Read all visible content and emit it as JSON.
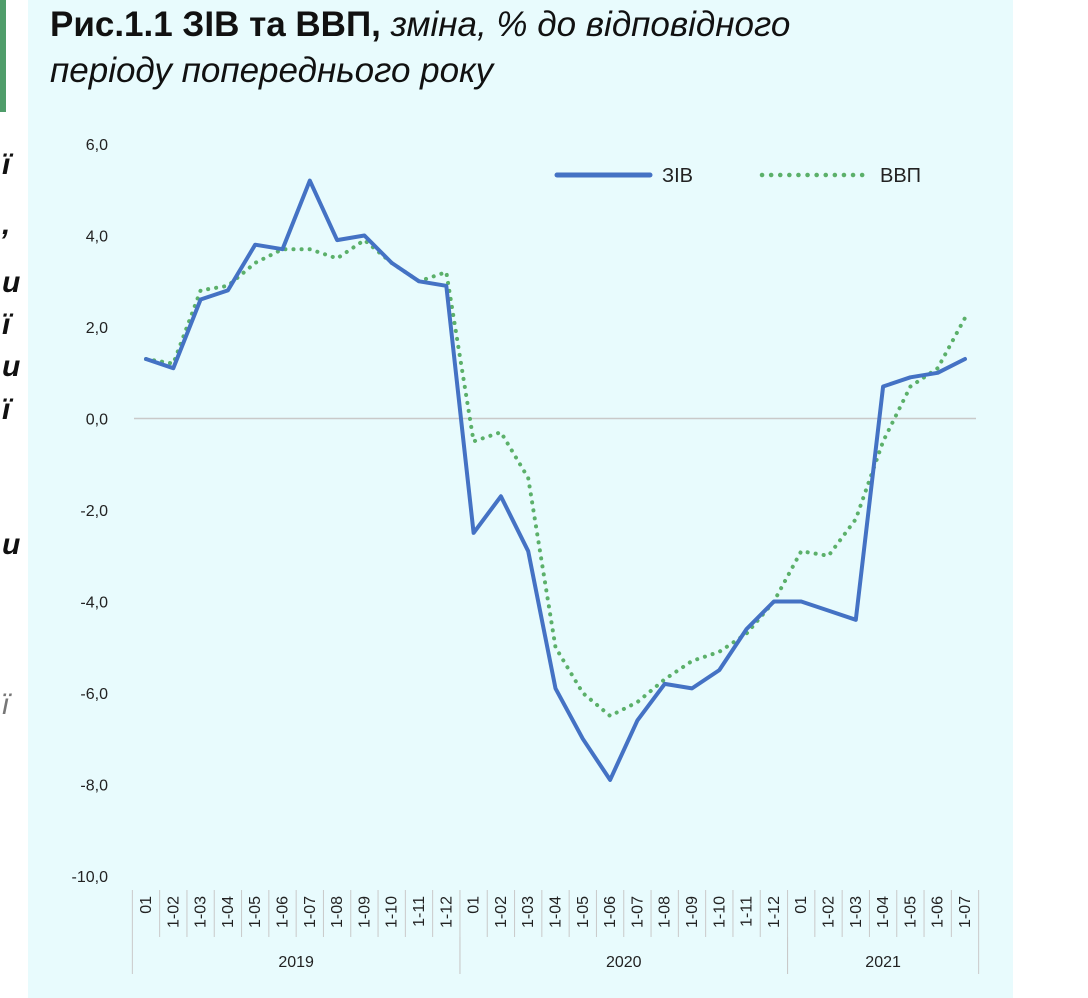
{
  "title": {
    "bold": "Рис.1.1 ЗІВ та ВВП,",
    "italic_line1": " зміна, % до відповідного",
    "italic_line2": "періоду попереднього року"
  },
  "left_fragments": [
    "ї",
    ",",
    "и",
    "ї",
    "и",
    "ї",
    "и",
    "ї"
  ],
  "chart_data": {
    "type": "line",
    "title": "Рис.1.1 ЗІВ та ВВП, зміна, % до відповідного періоду попереднього року",
    "xlabel": "",
    "ylabel": "",
    "ylim": [
      -10,
      6
    ],
    "yticks": [
      6,
      4,
      2,
      0,
      -2,
      -4,
      -6,
      -8,
      -10
    ],
    "ytick_labels": [
      "6,0",
      "4,0",
      "2,0",
      "0,0",
      "-2,0",
      "-4,0",
      "-6,0",
      "-8,0",
      "-10,0"
    ],
    "categories": [
      "01",
      "1-02",
      "1-03",
      "1-04",
      "1-05",
      "1-06",
      "1-07",
      "1-08",
      "1-09",
      "1-10",
      "1-11",
      "1-12",
      "01",
      "1-02",
      "1-03",
      "1-04",
      "1-05",
      "1-06",
      "1-07",
      "1-08",
      "1-09",
      "1-10",
      "1-11",
      "1-12",
      "01",
      "1-02",
      "1-03",
      "1-04",
      "1-05",
      "1-06",
      "1-07"
    ],
    "year_groups": [
      {
        "label": "2019",
        "start": 0,
        "end": 11
      },
      {
        "label": "2020",
        "start": 12,
        "end": 23
      },
      {
        "label": "2021",
        "start": 24,
        "end": 30
      }
    ],
    "legend": "top-right",
    "zero_line": true,
    "series": [
      {
        "name": "ЗІВ",
        "color": "#4472c4",
        "style": "solid",
        "values": [
          1.3,
          1.1,
          2.6,
          2.8,
          3.8,
          3.7,
          5.2,
          3.9,
          4.0,
          3.4,
          3.0,
          2.9,
          -2.5,
          -1.7,
          -2.9,
          -5.9,
          -7.0,
          -7.9,
          -6.6,
          -5.8,
          -5.9,
          -5.5,
          -4.6,
          -4.0,
          -4.0,
          -4.2,
          -4.4,
          0.7,
          0.9,
          1.0,
          1.3
        ]
      },
      {
        "name": "ВВП",
        "color": "#5bb06a",
        "style": "dotted",
        "values": [
          1.3,
          1.2,
          2.8,
          2.9,
          3.4,
          3.7,
          3.7,
          3.5,
          3.9,
          3.4,
          3.0,
          3.2,
          -0.5,
          -0.3,
          -1.3,
          -5.0,
          -6.0,
          -6.5,
          -6.2,
          -5.7,
          -5.3,
          -5.1,
          -4.7,
          -4.0,
          -2.9,
          -3.0,
          -2.2,
          -0.5,
          0.7,
          1.1,
          2.2
        ]
      }
    ]
  }
}
